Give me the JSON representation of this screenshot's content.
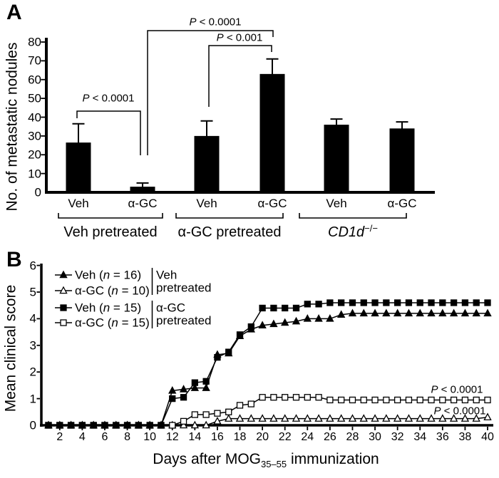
{
  "colors": {
    "ink": "#000000",
    "background": "#ffffff"
  },
  "panels": {
    "a": {
      "letter": "A"
    },
    "b": {
      "letter": "B"
    }
  },
  "chart_data": [
    {
      "type": "bar",
      "panel": "A",
      "title": "",
      "ylabel": "No. of metastatic nodules",
      "ylim": [
        0,
        80
      ],
      "y_ticks": [
        0,
        10,
        20,
        30,
        40,
        50,
        60,
        70,
        80
      ],
      "categories": [
        "Veh",
        "α-GC",
        "Veh",
        "α-GC",
        "Veh",
        "α-GC"
      ],
      "values": [
        26.5,
        3,
        30,
        63,
        36,
        34
      ],
      "error_bar_tops": [
        36.5,
        5,
        38,
        71,
        39,
        37.5
      ],
      "bar_color": "#000000",
      "groups": [
        {
          "label": "Veh pretreated",
          "italic": false,
          "sup": "",
          "bar_indexes": [
            0,
            1
          ]
        },
        {
          "label": "α-GC pretreated",
          "italic": false,
          "sup": "",
          "bar_indexes": [
            2,
            3
          ]
        },
        {
          "label": "CD1d",
          "italic": true,
          "sup": "−/−",
          "bar_indexes": [
            4,
            5
          ]
        }
      ],
      "significance": [
        {
          "label": "P < 0.0001",
          "from_bar_index": 0,
          "to_bar_index": 1
        },
        {
          "label": "P < 0.0001",
          "from_bar_index": 1,
          "to_bar_index": 3
        },
        {
          "label": "P < 0.001",
          "from_bar_index": 2,
          "to_bar_index": 3
        }
      ]
    },
    {
      "type": "line",
      "panel": "B",
      "title": "",
      "ylabel": "Mean clinical score",
      "xlabel_pre": "Days after MOG",
      "xlabel_sub": "35–55",
      "xlabel_post": " immunization",
      "ylim": [
        0,
        6
      ],
      "xlim": [
        1,
        40
      ],
      "y_ticks": [
        0,
        1,
        2,
        3,
        4,
        5,
        6
      ],
      "x_ticks": [
        2,
        4,
        6,
        8,
        10,
        12,
        14,
        16,
        18,
        20,
        22,
        24,
        26,
        28,
        30,
        32,
        34,
        36,
        38,
        40
      ],
      "grid": false,
      "legend_position": "upper-left",
      "series": [
        {
          "treatment": "Veh",
          "n": "16",
          "marker": "filled-triangle",
          "pretreated_group": "Veh pretreated",
          "values": [
            0,
            0,
            0,
            0,
            0,
            0,
            0,
            0,
            0,
            0,
            0,
            1.3,
            1.35,
            1.4,
            1.4,
            2.65,
            2.7,
            3.35,
            3.6,
            3.75,
            3.8,
            3.85,
            3.9,
            4,
            4,
            4,
            4.15,
            4.2,
            4.2,
            4.2,
            4.2,
            4.2,
            4.2,
            4.2,
            4.2,
            4.2,
            4.2,
            4.2,
            4.2,
            4.2
          ]
        },
        {
          "treatment": "α-GC",
          "n": "10",
          "marker": "open-triangle",
          "pretreated_group": "Veh pretreated",
          "values": [
            0,
            0,
            0,
            0,
            0,
            0,
            0,
            0,
            0,
            0,
            0,
            0,
            0,
            0,
            0,
            0.15,
            0.25,
            0.25,
            0.25,
            0.25,
            0.25,
            0.25,
            0.25,
            0.25,
            0.25,
            0.25,
            0.25,
            0.25,
            0.25,
            0.25,
            0.25,
            0.25,
            0.25,
            0.25,
            0.25,
            0.25,
            0.25,
            0.25,
            0.25,
            0.3
          ]
        },
        {
          "treatment": "Veh",
          "n": "15",
          "marker": "filled-square",
          "pretreated_group": "α-GC pretreated",
          "values": [
            0,
            0,
            0,
            0,
            0,
            0,
            0,
            0,
            0,
            0,
            0,
            1,
            1.05,
            1.6,
            1.65,
            2.55,
            2.75,
            3.4,
            3.7,
            4.4,
            4.4,
            4.4,
            4.4,
            4.55,
            4.55,
            4.6,
            4.6,
            4.6,
            4.6,
            4.6,
            4.6,
            4.6,
            4.6,
            4.6,
            4.6,
            4.6,
            4.6,
            4.6,
            4.6,
            4.6
          ]
        },
        {
          "treatment": "α-GC",
          "n": "15",
          "marker": "open-square",
          "pretreated_group": "α-GC pretreated",
          "values": [
            0,
            0,
            0,
            0,
            0,
            0,
            0,
            0,
            0,
            0,
            0,
            0,
            0.15,
            0.4,
            0.4,
            0.45,
            0.5,
            0.75,
            0.8,
            1.05,
            1.05,
            1.05,
            1.05,
            1.05,
            1.05,
            0.95,
            0.95,
            0.95,
            0.95,
            0.95,
            0.95,
            0.95,
            0.95,
            0.95,
            0.95,
            0.95,
            0.95,
            0.95,
            0.95,
            0.95
          ]
        }
      ],
      "legend_groups": [
        {
          "line1": "Veh",
          "line2": "pretreated"
        },
        {
          "line1": "α-GC",
          "line2": "pretreated"
        }
      ],
      "annotations": [
        {
          "label": "P < 0.0001",
          "series": "α-GC (n = 15)"
        },
        {
          "label": "P < 0.0001",
          "series": "α-GC (n = 10)"
        }
      ]
    }
  ]
}
